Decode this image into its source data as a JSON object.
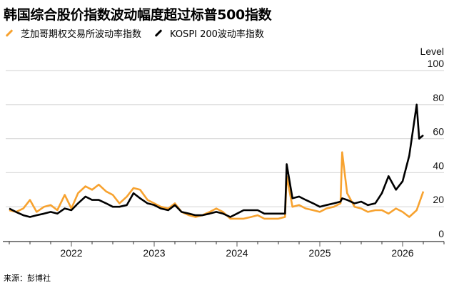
{
  "header": {
    "title": "韩国综合股价指数波动幅度超过标普500指数"
  },
  "legend": [
    {
      "label": "芝加哥期权交易所波动率指数",
      "color": "#F7A22F",
      "icon": "orange-line-swatch"
    },
    {
      "label": "KOSPI 200波动率指数",
      "color": "#000000",
      "icon": "black-line-swatch"
    }
  ],
  "footer": {
    "source": "来源：彭博社"
  },
  "chart_data": {
    "type": "line",
    "title": "韩国综合股价指数波动幅度超过标普500指数",
    "xlabel": "",
    "ylabel": "Level",
    "ylim": [
      0,
      100
    ],
    "y_ticks": [
      0,
      20,
      40,
      60,
      80,
      100
    ],
    "x_tick_labels": [
      "2022",
      "2023",
      "2024",
      "2025",
      "2026"
    ],
    "x_range": [
      2021.2,
      2026.35
    ],
    "grid": true,
    "legend_position": "top-left",
    "series": [
      {
        "name": "芝加哥期权交易所波动率指数",
        "color": "#F7A22F",
        "x": [
          2021.25,
          2021.33,
          2021.42,
          2021.5,
          2021.58,
          2021.67,
          2021.75,
          2021.83,
          2021.92,
          2022.0,
          2022.08,
          2022.17,
          2022.25,
          2022.33,
          2022.42,
          2022.5,
          2022.58,
          2022.67,
          2022.75,
          2022.83,
          2022.92,
          2023.0,
          2023.08,
          2023.17,
          2023.25,
          2023.33,
          2023.42,
          2023.5,
          2023.58,
          2023.67,
          2023.75,
          2023.83,
          2023.92,
          2024.0,
          2024.08,
          2024.17,
          2024.25,
          2024.33,
          2024.42,
          2024.5,
          2024.58,
          2024.6,
          2024.67,
          2024.75,
          2024.83,
          2024.92,
          2025.0,
          2025.08,
          2025.17,
          2025.25,
          2025.27,
          2025.33,
          2025.42,
          2025.5,
          2025.58,
          2025.67,
          2025.75,
          2025.83,
          2025.92,
          2026.0,
          2026.08,
          2026.17,
          2026.25
        ],
        "values": [
          18,
          17,
          19,
          24,
          17,
          20,
          21,
          18,
          27,
          19,
          28,
          32,
          30,
          33,
          29,
          27,
          22,
          26,
          31,
          30,
          24,
          22,
          20,
          19,
          22,
          17,
          15,
          14,
          15,
          17,
          19,
          17,
          13,
          13,
          13,
          14,
          15,
          13,
          13,
          13,
          14,
          38,
          20,
          21,
          19,
          18,
          17,
          19,
          20,
          22,
          52,
          28,
          20,
          19,
          17,
          18,
          18,
          16,
          19,
          17,
          14,
          18,
          29
        ]
      },
      {
        "name": "KOSPI 200波动率指数",
        "color": "#000000",
        "x": [
          2021.25,
          2021.33,
          2021.42,
          2021.5,
          2021.58,
          2021.67,
          2021.75,
          2021.83,
          2021.92,
          2022.0,
          2022.08,
          2022.17,
          2022.25,
          2022.33,
          2022.42,
          2022.5,
          2022.58,
          2022.67,
          2022.75,
          2022.83,
          2022.92,
          2023.0,
          2023.08,
          2023.17,
          2023.25,
          2023.33,
          2023.42,
          2023.5,
          2023.58,
          2023.67,
          2023.75,
          2023.83,
          2023.92,
          2024.0,
          2024.08,
          2024.17,
          2024.25,
          2024.33,
          2024.42,
          2024.5,
          2024.58,
          2024.6,
          2024.67,
          2024.75,
          2024.83,
          2024.92,
          2025.0,
          2025.08,
          2025.17,
          2025.25,
          2025.27,
          2025.33,
          2025.42,
          2025.5,
          2025.58,
          2025.67,
          2025.75,
          2025.83,
          2025.92,
          2026.0,
          2026.08,
          2026.17,
          2026.2,
          2026.25
        ],
        "values": [
          19,
          17,
          15,
          14,
          15,
          16,
          17,
          16,
          19,
          18,
          22,
          26,
          24,
          24,
          22,
          20,
          20,
          21,
          28,
          25,
          22,
          21,
          19,
          18,
          21,
          17,
          16,
          15,
          15,
          16,
          17,
          16,
          14,
          16,
          18,
          18,
          18,
          16,
          16,
          16,
          16,
          45,
          25,
          26,
          24,
          22,
          20,
          21,
          22,
          23,
          25,
          24,
          22,
          23,
          21,
          22,
          28,
          38,
          30,
          35,
          50,
          80,
          60,
          62
        ]
      }
    ]
  }
}
